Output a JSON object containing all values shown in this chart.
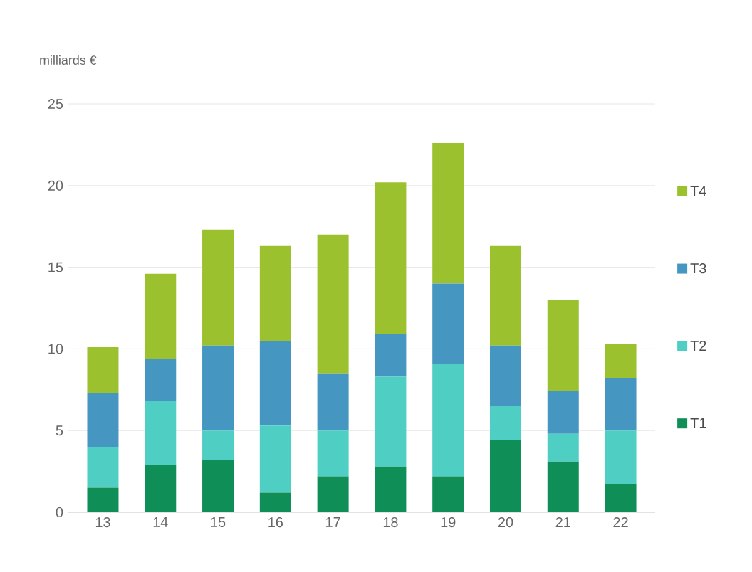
{
  "chart_data": {
    "type": "bar",
    "stacked": true,
    "ylabel": "milliards €",
    "categories": [
      "13",
      "14",
      "15",
      "16",
      "17",
      "18",
      "19",
      "20",
      "21",
      "22"
    ],
    "series": [
      {
        "name": "T1",
        "color": "#0f8f57",
        "values": [
          1.5,
          2.9,
          3.2,
          1.2,
          2.2,
          2.8,
          2.2,
          4.4,
          3.1,
          1.7
        ]
      },
      {
        "name": "T2",
        "color": "#4fcfc4",
        "values": [
          2.5,
          3.9,
          1.8,
          4.1,
          2.8,
          5.5,
          6.9,
          2.1,
          1.7,
          3.3
        ]
      },
      {
        "name": "T3",
        "color": "#4596c0",
        "values": [
          3.3,
          2.6,
          5.2,
          5.2,
          3.5,
          2.6,
          4.9,
          3.7,
          2.6,
          3.2
        ]
      },
      {
        "name": "T4",
        "color": "#9bc22e",
        "values": [
          2.8,
          5.2,
          7.1,
          5.8,
          8.5,
          9.3,
          8.6,
          6.1,
          5.6,
          2.1
        ]
      }
    ],
    "ylim": [
      0,
      25
    ],
    "yticks": [
      0,
      5,
      10,
      15,
      20,
      25
    ],
    "grid": "y",
    "legend": "right"
  }
}
